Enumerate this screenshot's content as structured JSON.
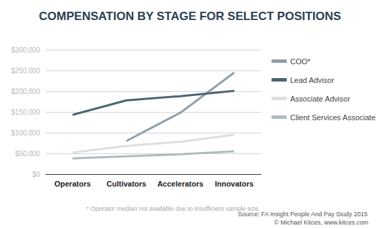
{
  "chart_data": {
    "type": "line",
    "title": "COMPENSATION BY STAGE FOR SELECT POSITIONS",
    "annotations": [
      "* Operator median not available due to insufficient sample size.",
      "Source: FA Insight People And Pay Study 2015",
      "© Michael Kitces, www.kitces.com"
    ],
    "categories": [
      "Operators",
      "Cultivators",
      "Accelerators",
      "Innovators"
    ],
    "series": [
      {
        "name": "COO*",
        "color": "#8e9fa8",
        "values": [
          null,
          80000,
          148000,
          245000
        ]
      },
      {
        "name": "Lead Advisor",
        "color": "#4b6571",
        "values": [
          143000,
          178000,
          188000,
          201000
        ]
      },
      {
        "name": "Associate Advisor",
        "color": "#dcdfdf",
        "values": [
          52000,
          68000,
          78000,
          95000
        ]
      },
      {
        "name": "Client Services Associate",
        "color": "#aebbbe",
        "values": [
          38000,
          43000,
          48000,
          55000
        ]
      }
    ],
    "ylim": [
      0,
      300000
    ],
    "yticks": [
      {
        "value": 0,
        "label": "$0"
      },
      {
        "value": 50000,
        "label": "$50,000"
      },
      {
        "value": 100000,
        "label": "$100,000"
      },
      {
        "value": 150000,
        "label": "$150,000"
      },
      {
        "value": 200000,
        "label": "$200,000"
      },
      {
        "value": 250000,
        "label": "$250,000"
      },
      {
        "value": 300000,
        "label": "$300,000"
      }
    ],
    "grid": true,
    "legend": "right",
    "marker": "none",
    "line_style": "solid"
  }
}
